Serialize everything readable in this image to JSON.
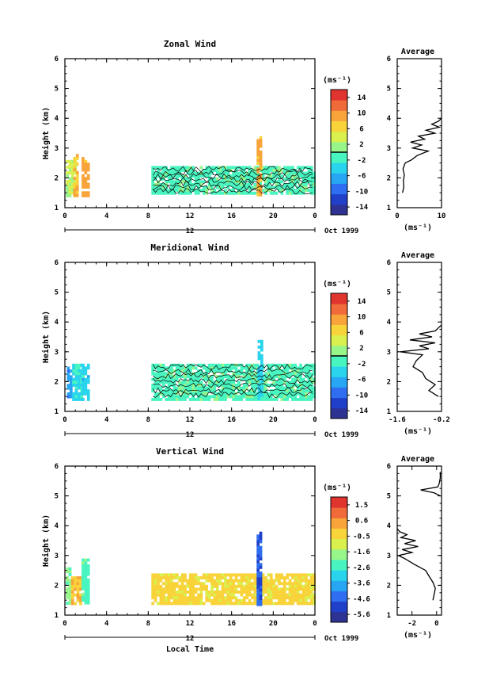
{
  "figure": {
    "xlabel": "Local Time",
    "date_label": "Oct 1999",
    "day_label": "12"
  },
  "chart_data": [
    {
      "type": "heatmap",
      "title": "Zonal Wind",
      "ylabel": "Height (km)",
      "ylim": [
        1,
        6
      ],
      "yticks": [
        "1",
        "2",
        "3",
        "4",
        "5",
        "6"
      ],
      "xticks": [
        "0",
        "4",
        "8",
        "12",
        "16",
        "20",
        "0"
      ],
      "xlim_hours": [
        0,
        24
      ],
      "colorbar": {
        "unit": "(ms⁻¹)",
        "range": [
          -16,
          16
        ],
        "labels": [
          "14",
          "10",
          "6",
          "2",
          "-2",
          "-6",
          "-10",
          "-14"
        ],
        "zero_line": 0
      },
      "data_gaps_hours": [
        [
          2.2,
          8.3
        ]
      ],
      "regions": [
        {
          "t0": 0.1,
          "t1": 0.9,
          "h0": 1.45,
          "h1": 2.6,
          "value": 3
        },
        {
          "t0": 0.8,
          "t1": 1.15,
          "h0": 1.45,
          "h1": 2.8,
          "value": 8
        },
        {
          "t0": 1.6,
          "t1": 2.2,
          "h0": 1.45,
          "h1": 2.7,
          "value": 9
        },
        {
          "t0": 8.3,
          "t1": 24,
          "h0": 1.45,
          "h1": 2.4,
          "value": -1
        },
        {
          "t0": 18.4,
          "t1": 18.9,
          "h0": 1.45,
          "h1": 3.4,
          "value": 9
        }
      ],
      "profile": {
        "title": "Average",
        "xlabel": "(ms⁻¹)",
        "xticks": [
          "0",
          "10"
        ],
        "xlim": [
          0,
          10
        ],
        "heights": [
          1.5,
          1.7,
          1.9,
          2.1,
          2.3,
          2.5,
          2.6,
          2.75,
          2.9,
          3.0,
          3.1,
          3.2,
          3.3,
          3.4,
          3.5,
          3.6,
          3.7,
          3.8,
          3.9,
          4.0
        ],
        "values": [
          1.2,
          1.5,
          1.4,
          1.6,
          1.3,
          1.8,
          3.2,
          4.5,
          7.0,
          3.5,
          5.5,
          3.0,
          6.2,
          4.8,
          8.5,
          6.5,
          9.5,
          7.8,
          9.3,
          10.0
        ]
      }
    },
    {
      "type": "heatmap",
      "title": "Meridional Wind",
      "ylabel": "Height (km)",
      "ylim": [
        1,
        6
      ],
      "yticks": [
        "1",
        "2",
        "3",
        "4",
        "5",
        "6"
      ],
      "xticks": [
        "0",
        "4",
        "8",
        "12",
        "16",
        "20",
        "0"
      ],
      "xlim_hours": [
        0,
        24
      ],
      "colorbar": {
        "unit": "(ms⁻¹)",
        "range": [
          -16,
          16
        ],
        "labels": [
          "14",
          "10",
          "6",
          "2",
          "-2",
          "-6",
          "-10",
          "-14"
        ],
        "zero_line": 0
      },
      "data_gaps_hours": [
        [
          2.2,
          8.3
        ]
      ],
      "regions": [
        {
          "t0": 0.2,
          "t1": 0.7,
          "h0": 1.45,
          "h1": 2.5,
          "value": -7
        },
        {
          "t0": 0.7,
          "t1": 1.6,
          "h0": 1.45,
          "h1": 2.6,
          "value": -3
        },
        {
          "t0": 1.6,
          "t1": 2.2,
          "h0": 1.45,
          "h1": 2.6,
          "value": -4
        },
        {
          "t0": 8.3,
          "t1": 24,
          "h0": 1.45,
          "h1": 2.6,
          "value": -1
        },
        {
          "t0": 18.5,
          "t1": 18.8,
          "h0": 1.45,
          "h1": 3.4,
          "value": -4
        }
      ],
      "profile": {
        "title": "Average",
        "xlabel": "(ms⁻¹)",
        "xticks": [
          "-1.6",
          "-0.2"
        ],
        "xlim": [
          -1.6,
          -0.2
        ],
        "heights": [
          1.5,
          1.7,
          1.9,
          2.1,
          2.3,
          2.5,
          2.7,
          2.9,
          3.0,
          3.1,
          3.2,
          3.3,
          3.4,
          3.5,
          3.6,
          3.7,
          3.8,
          3.9
        ],
        "values": [
          -0.3,
          -0.6,
          -0.4,
          -0.7,
          -0.8,
          -1.1,
          -1.0,
          -0.8,
          -1.5,
          -0.6,
          -0.9,
          -0.4,
          -1.2,
          -0.5,
          -0.9,
          -0.4,
          -0.3,
          -0.2
        ]
      }
    },
    {
      "type": "heatmap",
      "title": "Vertical Wind",
      "ylabel": "Height (km)",
      "ylim": [
        1,
        6
      ],
      "yticks": [
        "1",
        "2",
        "3",
        "4",
        "5",
        "6"
      ],
      "xticks": [
        "0",
        "4",
        "8",
        "12",
        "16",
        "20",
        "0"
      ],
      "xlim_hours": [
        0,
        24
      ],
      "colorbar": {
        "unit": "(ms⁻¹)",
        "range": [
          -6.2,
          2.2
        ],
        "labels": [
          "1.5",
          "0.6",
          "-0.5",
          "-1.6",
          "-2.6",
          "-3.6",
          "-4.6",
          "-5.6"
        ],
        "zero_line": null
      },
      "data_gaps_hours": [
        [
          2.2,
          8.3
        ]
      ],
      "regions": [
        {
          "t0": 0.1,
          "t1": 0.6,
          "h0": 1.4,
          "h1": 2.6,
          "value": -1.8
        },
        {
          "t0": 0.6,
          "t1": 1.6,
          "h0": 1.4,
          "h1": 2.3,
          "value": 0.0
        },
        {
          "t0": 1.6,
          "t1": 2.2,
          "h0": 1.4,
          "h1": 2.9,
          "value": -2.3
        },
        {
          "t0": 8.3,
          "t1": 24,
          "h0": 1.4,
          "h1": 2.4,
          "value": -0.4
        },
        {
          "t0": 18.4,
          "t1": 18.8,
          "h0": 1.4,
          "h1": 3.8,
          "value": -4.8
        }
      ],
      "profile": {
        "title": "Average",
        "xlabel": "(ms⁻¹)",
        "xticks": [
          "-2",
          "0"
        ],
        "xlim": [
          -3.2,
          0.4
        ],
        "heights": [
          1.5,
          1.7,
          1.9,
          2.1,
          2.3,
          2.5,
          2.7,
          2.9,
          3.0,
          3.1,
          3.2,
          3.3,
          3.4,
          3.5,
          3.6,
          3.7,
          3.8,
          3.9,
          5.0,
          5.1,
          5.2,
          5.3,
          5.4,
          5.6,
          5.8
        ],
        "values": [
          -0.3,
          -0.2,
          -0.1,
          -0.3,
          -0.6,
          -0.9,
          -1.8,
          -2.6,
          -3.1,
          -2.0,
          -2.8,
          -1.5,
          -2.6,
          -1.7,
          -2.9,
          -2.4,
          -3.0,
          -3.2,
          0.3,
          -0.2,
          -1.3,
          0.1,
          0.2,
          0.3,
          0.3
        ]
      }
    }
  ]
}
